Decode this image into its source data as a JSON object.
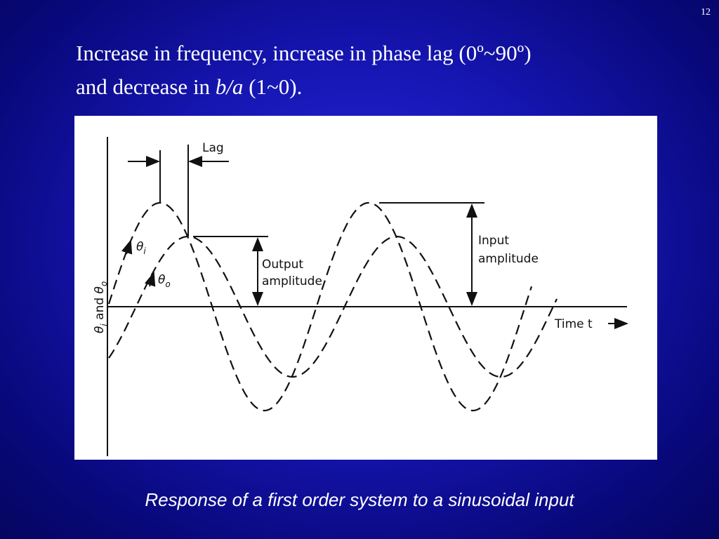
{
  "page_number": "12",
  "title": {
    "line1": "Increase in frequency, increase in phase lag (0º~90º)",
    "line2": {
      "before": "and decrease in ",
      "italic": "b/a",
      "after": " (1~0)."
    }
  },
  "figure": {
    "lag": "Lag",
    "theta_i": {
      "symbol": "θ",
      "sub": "i"
    },
    "theta_o": {
      "symbol": "θ",
      "sub": "o"
    },
    "output_amplitude": [
      "Output",
      "amplitude"
    ],
    "input_amplitude": [
      "Input",
      "amplitude"
    ],
    "y_axis": {
      "a": "θ",
      "a_sub": "i",
      "mid": " and ",
      "b": "θ",
      "b_sub": "o"
    },
    "x_axis": "Time t"
  },
  "caption": "Response of a first order system to a sinusoidal input"
}
